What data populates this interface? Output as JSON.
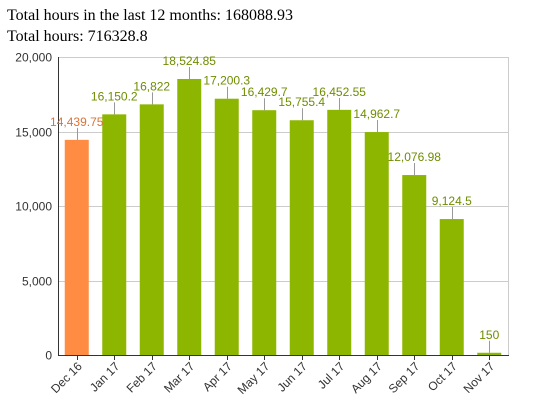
{
  "summary": {
    "last12_text": "Total hours in the last 12 months: 168088.93",
    "total_text": "Total hours: 716328.8"
  },
  "colors": {
    "bar": "#8db600",
    "highlight_bar": "#ff8c42",
    "label_green": "#6e8d00",
    "label_orange": "#d9743a",
    "grid": "#cccccc",
    "axis": "#333333"
  },
  "chart_data": {
    "type": "bar",
    "title": "",
    "xlabel": "",
    "ylabel": "",
    "ylim": [
      0,
      20000
    ],
    "yticks": [
      0,
      5000,
      10000,
      15000,
      20000
    ],
    "ytick_labels": [
      "0",
      "5,000",
      "10,000",
      "15,000",
      "20,000"
    ],
    "grid": true,
    "categories": [
      "Dec 16",
      "Jan 17",
      "Feb 17",
      "Mar 17",
      "Apr 17",
      "May 17",
      "Jun 17",
      "Jul 17",
      "Aug 17",
      "Sep 17",
      "Oct 17",
      "Nov 17"
    ],
    "values": [
      14439.75,
      16150.2,
      16822,
      18524.85,
      17200.3,
      16429.7,
      15755.4,
      16452.55,
      14962.7,
      12076.98,
      9124.5,
      150
    ],
    "value_labels": [
      "14,439.75",
      "16,150.2",
      "16,822",
      "18,524.85",
      "17,200.3",
      "16,429.7",
      "15,755.4",
      "16,452.55",
      "14,962.7",
      "12,076.98",
      "9,124.5",
      "150"
    ],
    "highlighted_index": 0
  }
}
